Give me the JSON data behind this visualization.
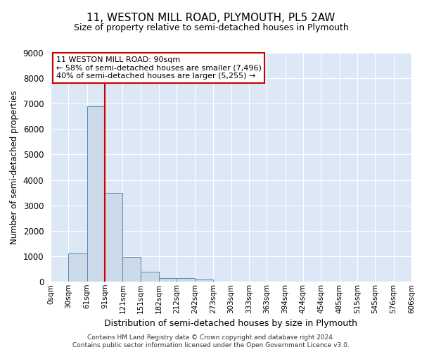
{
  "title_line1": "11, WESTON MILL ROAD, PLYMOUTH, PL5 2AW",
  "title_line2": "Size of property relative to semi-detached houses in Plymouth",
  "xlabel": "Distribution of semi-detached houses by size in Plymouth",
  "ylabel": "Number of semi-detached properties",
  "annotation_title": "11 WESTON MILL ROAD: 90sqm",
  "annotation_line1": "← 58% of semi-detached houses are smaller (7,496)",
  "annotation_line2": "40% of semi-detached houses are larger (5,255) →",
  "footer_line1": "Contains HM Land Registry data © Crown copyright and database right 2024.",
  "footer_line2": "Contains public sector information licensed under the Open Government Licence v3.0.",
  "bar_edges": [
    0,
    30,
    61,
    91,
    121,
    151,
    182,
    212,
    242,
    273,
    303,
    333,
    363,
    394,
    424,
    454,
    485,
    515,
    545,
    576,
    606
  ],
  "bar_heights": [
    0,
    1100,
    6900,
    3500,
    980,
    380,
    130,
    130,
    70,
    0,
    0,
    0,
    0,
    0,
    0,
    0,
    0,
    0,
    0,
    0
  ],
  "bar_color": "#ccd9e8",
  "bar_edgecolor": "#5588bb",
  "property_size": 91,
  "vline_color": "#cc0000",
  "ylim": [
    0,
    9000
  ],
  "yticks": [
    0,
    1000,
    2000,
    3000,
    4000,
    5000,
    6000,
    7000,
    8000,
    9000
  ],
  "background_color": "#dce8f5",
  "grid_color": "#ffffff",
  "annotation_box_edgecolor": "#cc0000",
  "annotation_box_facecolor": "#ffffff"
}
